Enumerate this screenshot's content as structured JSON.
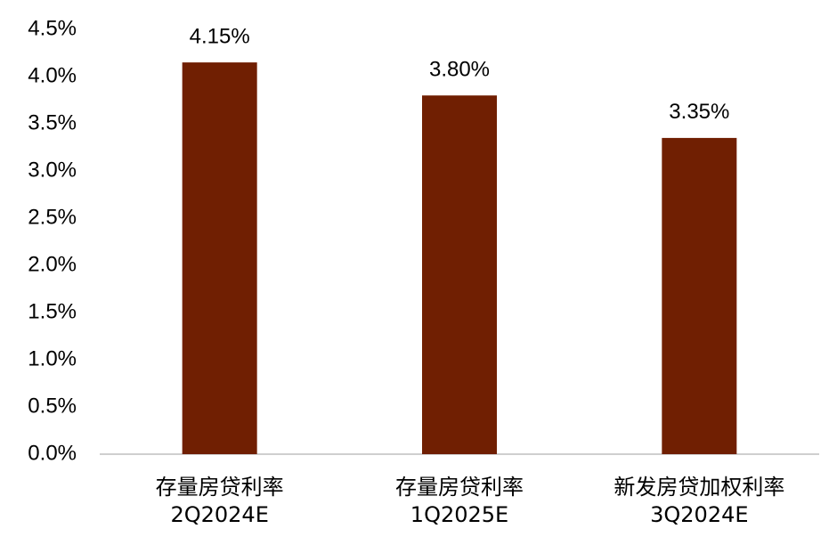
{
  "chart_data": {
    "type": "bar",
    "categories": [
      "存量房贷利率\n2Q2024E",
      "存量房贷利率\n1Q2025E",
      "新发房贷加权利率\n3Q2024E"
    ],
    "values": [
      4.15,
      3.8,
      3.35
    ],
    "value_labels": [
      "4.15%",
      "3.80%",
      "3.35%"
    ],
    "color": "#701f02",
    "ylim": [
      0,
      4.5
    ],
    "yticks": [
      {
        "value": 0,
        "label": "0.0%"
      },
      {
        "value": 0.5,
        "label": "0.5%"
      },
      {
        "value": 1,
        "label": "1.0%"
      },
      {
        "value": 1.5,
        "label": "1.5%"
      },
      {
        "value": 2,
        "label": "2.0%"
      },
      {
        "value": 2.5,
        "label": "2.5%"
      },
      {
        "value": 3,
        "label": "3.0%"
      },
      {
        "value": 3.5,
        "label": "3.5%"
      },
      {
        "value": 4,
        "label": "4.0%"
      },
      {
        "value": 4.5,
        "label": "4.5%"
      }
    ],
    "grid": false
  }
}
